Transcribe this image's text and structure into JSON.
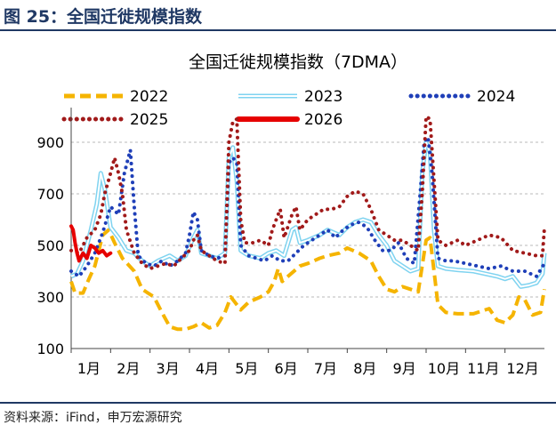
{
  "header": {
    "title": "图 25：全国迁徙规模指数"
  },
  "source": {
    "text": "资料来源：iFind，申万宏源研究"
  },
  "chart_data": {
    "type": "line",
    "title": "全国迁徙规模指数（7DMA）",
    "xlabel": "",
    "ylabel": "",
    "ylim": [
      100,
      1000
    ],
    "xlim": [
      1,
      13
    ],
    "yticks": [
      100,
      300,
      500,
      700,
      900
    ],
    "categories": [
      "1月",
      "2月",
      "3月",
      "4月",
      "5月",
      "6月",
      "7月",
      "8月",
      "9月",
      "10月",
      "11月",
      "12月"
    ],
    "legend_position": "top",
    "series": [
      {
        "name": "2022",
        "color": "#f5b400",
        "style": "dash",
        "points": [
          [
            1.0,
            360
          ],
          [
            1.1,
            315
          ],
          [
            1.3,
            315
          ],
          [
            1.45,
            370
          ],
          [
            1.6,
            420
          ],
          [
            1.8,
            540
          ],
          [
            1.95,
            560
          ],
          [
            2.1,
            510
          ],
          [
            2.3,
            450
          ],
          [
            2.6,
            400
          ],
          [
            2.8,
            330
          ],
          [
            3.1,
            300
          ],
          [
            3.3,
            240
          ],
          [
            3.5,
            185
          ],
          [
            3.7,
            175
          ],
          [
            3.9,
            175
          ],
          [
            4.1,
            185
          ],
          [
            4.3,
            200
          ],
          [
            4.5,
            180
          ],
          [
            4.7,
            190
          ],
          [
            4.9,
            240
          ],
          [
            5.05,
            300
          ],
          [
            5.15,
            280
          ],
          [
            5.3,
            250
          ],
          [
            5.5,
            280
          ],
          [
            5.8,
            300
          ],
          [
            6.0,
            320
          ],
          [
            6.15,
            360
          ],
          [
            6.25,
            410
          ],
          [
            6.35,
            360
          ],
          [
            6.5,
            380
          ],
          [
            6.8,
            420
          ],
          [
            7.0,
            430
          ],
          [
            7.3,
            450
          ],
          [
            7.5,
            460
          ],
          [
            7.8,
            470
          ],
          [
            8.0,
            490
          ],
          [
            8.3,
            470
          ],
          [
            8.6,
            440
          ],
          [
            8.8,
            380
          ],
          [
            9.0,
            330
          ],
          [
            9.2,
            320
          ],
          [
            9.4,
            340
          ],
          [
            9.6,
            330
          ],
          [
            9.8,
            320
          ],
          [
            10.0,
            520
          ],
          [
            10.1,
            530
          ],
          [
            10.2,
            400
          ],
          [
            10.3,
            270
          ],
          [
            10.5,
            240
          ],
          [
            10.8,
            235
          ],
          [
            11.2,
            235
          ],
          [
            11.6,
            255
          ],
          [
            11.8,
            210
          ],
          [
            12.0,
            200
          ],
          [
            12.2,
            230
          ],
          [
            12.35,
            300
          ],
          [
            12.5,
            290
          ],
          [
            12.7,
            230
          ],
          [
            12.9,
            240
          ],
          [
            13.0,
            330
          ]
        ]
      },
      {
        "name": "2023",
        "color": "#7fd3f0",
        "style": "double",
        "points": [
          [
            1.0,
            380
          ],
          [
            1.15,
            390
          ],
          [
            1.3,
            440
          ],
          [
            1.5,
            560
          ],
          [
            1.65,
            660
          ],
          [
            1.75,
            780
          ],
          [
            1.85,
            720
          ],
          [
            2.0,
            570
          ],
          [
            2.2,
            530
          ],
          [
            2.4,
            480
          ],
          [
            2.6,
            470
          ],
          [
            2.8,
            440
          ],
          [
            3.0,
            420
          ],
          [
            3.2,
            440
          ],
          [
            3.5,
            460
          ],
          [
            3.7,
            440
          ],
          [
            3.9,
            460
          ],
          [
            4.1,
            530
          ],
          [
            4.2,
            560
          ],
          [
            4.3,
            470
          ],
          [
            4.5,
            460
          ],
          [
            4.7,
            450
          ],
          [
            4.9,
            470
          ],
          [
            5.0,
            840
          ],
          [
            5.1,
            880
          ],
          [
            5.2,
            750
          ],
          [
            5.3,
            480
          ],
          [
            5.5,
            460
          ],
          [
            5.8,
            450
          ],
          [
            6.0,
            470
          ],
          [
            6.2,
            480
          ],
          [
            6.4,
            460
          ],
          [
            6.6,
            560
          ],
          [
            6.7,
            570
          ],
          [
            6.8,
            510
          ],
          [
            7.0,
            520
          ],
          [
            7.3,
            540
          ],
          [
            7.5,
            560
          ],
          [
            7.8,
            540
          ],
          [
            8.0,
            570
          ],
          [
            8.2,
            590
          ],
          [
            8.4,
            600
          ],
          [
            8.6,
            590
          ],
          [
            8.8,
            540
          ],
          [
            9.0,
            500
          ],
          [
            9.2,
            440
          ],
          [
            9.4,
            420
          ],
          [
            9.6,
            400
          ],
          [
            9.8,
            410
          ],
          [
            9.9,
            780
          ],
          [
            10.0,
            900
          ],
          [
            10.1,
            860
          ],
          [
            10.2,
            560
          ],
          [
            10.3,
            420
          ],
          [
            10.5,
            410
          ],
          [
            10.8,
            405
          ],
          [
            11.2,
            400
          ],
          [
            11.5,
            390
          ],
          [
            11.8,
            380
          ],
          [
            12.0,
            370
          ],
          [
            12.2,
            380
          ],
          [
            12.4,
            340
          ],
          [
            12.6,
            345
          ],
          [
            12.8,
            355
          ],
          [
            12.95,
            390
          ],
          [
            13.0,
            470
          ]
        ]
      },
      {
        "name": "2024",
        "color": "#1f3fb8",
        "style": "dot",
        "points": [
          [
            1.0,
            400
          ],
          [
            1.2,
            380
          ],
          [
            1.4,
            420
          ],
          [
            1.6,
            470
          ],
          [
            1.8,
            550
          ],
          [
            2.0,
            650
          ],
          [
            2.2,
            620
          ],
          [
            2.35,
            780
          ],
          [
            2.5,
            870
          ],
          [
            2.6,
            650
          ],
          [
            2.7,
            460
          ],
          [
            2.9,
            430
          ],
          [
            3.1,
            420
          ],
          [
            3.3,
            440
          ],
          [
            3.5,
            420
          ],
          [
            3.7,
            440
          ],
          [
            3.9,
            470
          ],
          [
            4.0,
            540
          ],
          [
            4.1,
            630
          ],
          [
            4.2,
            600
          ],
          [
            4.3,
            480
          ],
          [
            4.5,
            460
          ],
          [
            4.7,
            450
          ],
          [
            4.9,
            460
          ],
          [
            5.0,
            820
          ],
          [
            5.1,
            840
          ],
          [
            5.2,
            820
          ],
          [
            5.3,
            500
          ],
          [
            5.5,
            460
          ],
          [
            5.7,
            450
          ],
          [
            5.9,
            440
          ],
          [
            6.1,
            460
          ],
          [
            6.3,
            440
          ],
          [
            6.5,
            440
          ],
          [
            6.7,
            470
          ],
          [
            6.9,
            500
          ],
          [
            7.1,
            520
          ],
          [
            7.3,
            540
          ],
          [
            7.5,
            560
          ],
          [
            7.7,
            530
          ],
          [
            7.9,
            560
          ],
          [
            8.1,
            580
          ],
          [
            8.3,
            590
          ],
          [
            8.5,
            570
          ],
          [
            8.7,
            520
          ],
          [
            8.9,
            480
          ],
          [
            9.1,
            480
          ],
          [
            9.3,
            510
          ],
          [
            9.5,
            450
          ],
          [
            9.7,
            430
          ],
          [
            9.85,
            700
          ],
          [
            9.95,
            900
          ],
          [
            10.05,
            920
          ],
          [
            10.15,
            780
          ],
          [
            10.3,
            450
          ],
          [
            10.5,
            440
          ],
          [
            10.7,
            440
          ],
          [
            11.0,
            430
          ],
          [
            11.3,
            420
          ],
          [
            11.6,
            410
          ],
          [
            11.9,
            420
          ],
          [
            12.2,
            400
          ],
          [
            12.5,
            400
          ],
          [
            12.8,
            380
          ],
          [
            13.0,
            430
          ]
        ]
      },
      {
        "name": "2025",
        "color": "#a11a1a",
        "style": "dot",
        "points": [
          [
            1.0,
            480
          ],
          [
            1.2,
            470
          ],
          [
            1.4,
            530
          ],
          [
            1.6,
            560
          ],
          [
            1.75,
            620
          ],
          [
            1.85,
            700
          ],
          [
            2.0,
            780
          ],
          [
            2.1,
            840
          ],
          [
            2.2,
            780
          ],
          [
            2.3,
            700
          ],
          [
            2.4,
            560
          ],
          [
            2.6,
            470
          ],
          [
            2.8,
            430
          ],
          [
            3.0,
            410
          ],
          [
            3.2,
            420
          ],
          [
            3.4,
            430
          ],
          [
            3.6,
            420
          ],
          [
            3.8,
            450
          ],
          [
            4.0,
            480
          ],
          [
            4.1,
            520
          ],
          [
            4.2,
            540
          ],
          [
            4.3,
            480
          ],
          [
            4.5,
            460
          ],
          [
            4.7,
            440
          ],
          [
            4.9,
            430
          ],
          [
            5.0,
            900
          ],
          [
            5.1,
            980
          ],
          [
            5.2,
            990
          ],
          [
            5.3,
            600
          ],
          [
            5.4,
            510
          ],
          [
            5.6,
            510
          ],
          [
            5.8,
            520
          ],
          [
            6.0,
            500
          ],
          [
            6.1,
            560
          ],
          [
            6.2,
            600
          ],
          [
            6.3,
            640
          ],
          [
            6.4,
            530
          ],
          [
            6.6,
            620
          ],
          [
            6.7,
            650
          ],
          [
            6.8,
            560
          ],
          [
            7.0,
            600
          ],
          [
            7.2,
            620
          ],
          [
            7.4,
            640
          ],
          [
            7.6,
            640
          ],
          [
            7.8,
            650
          ],
          [
            8.0,
            690
          ],
          [
            8.2,
            710
          ],
          [
            8.4,
            700
          ],
          [
            8.6,
            640
          ],
          [
            8.8,
            560
          ],
          [
            9.0,
            540
          ],
          [
            9.2,
            520
          ],
          [
            9.4,
            520
          ],
          [
            9.6,
            500
          ],
          [
            9.8,
            480
          ],
          [
            9.9,
            700
          ],
          [
            10.0,
            1000
          ],
          [
            10.1,
            990
          ],
          [
            10.2,
            750
          ],
          [
            10.3,
            520
          ],
          [
            10.5,
            500
          ],
          [
            10.8,
            520
          ],
          [
            11.0,
            500
          ],
          [
            11.3,
            520
          ],
          [
            11.6,
            540
          ],
          [
            11.9,
            530
          ],
          [
            12.2,
            480
          ],
          [
            12.5,
            470
          ],
          [
            12.8,
            460
          ],
          [
            12.95,
            460
          ],
          [
            13.0,
            570
          ]
        ]
      },
      {
        "name": "2026",
        "color": "#e60000",
        "style": "solid",
        "points": [
          [
            1.0,
            575
          ],
          [
            1.05,
            560
          ],
          [
            1.1,
            510
          ],
          [
            1.15,
            470
          ],
          [
            1.2,
            440
          ],
          [
            1.3,
            470
          ],
          [
            1.4,
            450
          ],
          [
            1.5,
            500
          ],
          [
            1.6,
            490
          ],
          [
            1.7,
            470
          ],
          [
            1.8,
            480
          ],
          [
            1.9,
            460
          ],
          [
            2.0,
            470
          ]
        ]
      }
    ]
  }
}
